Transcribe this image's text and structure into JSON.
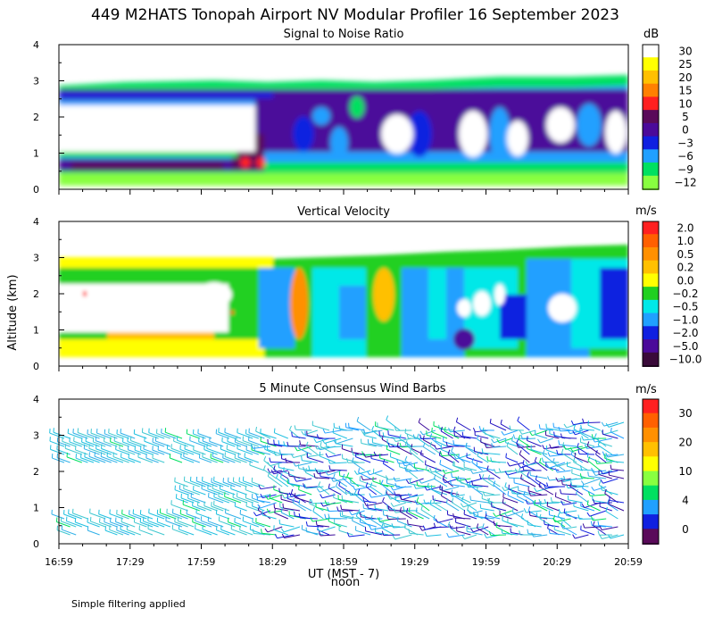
{
  "title": "449 M2HATS Tonopah Airport NV Modular Profiler 16 September 2023",
  "ylabel": "Altitude (km)",
  "xlabel": "UT  (MST - 7)",
  "noon_label": "noon",
  "footnote": "Simple filtering applied",
  "x_ticks": [
    "16:59",
    "17:29",
    "17:59",
    "18:29",
    "18:59",
    "19:29",
    "19:59",
    "20:29",
    "20:59"
  ],
  "y_ticks": [
    "0",
    "1",
    "2",
    "3",
    "4"
  ],
  "chart_data": [
    {
      "type": "heatmap",
      "title": "Signal to Noise Ratio",
      "unit": "dB",
      "ylim": [
        0,
        4
      ],
      "colorbar": {
        "ticks": [
          "30",
          "25",
          "20",
          "15",
          "10",
          "5",
          "0",
          "−3",
          "−6",
          "−9",
          "−12"
        ],
        "colors": [
          "#ffffff",
          "#ffff00",
          "#ffc000",
          "#ff8000",
          "#ff2020",
          "#5a0a5a",
          "#4b0a9a",
          "#1020e0",
          "#20a0ff",
          "#00e060",
          "#88ff40"
        ]
      }
    },
    {
      "type": "heatmap",
      "title": "Vertical Velocity",
      "unit": "m/s",
      "ylim": [
        0,
        4
      ],
      "colorbar": {
        "ticks": [
          "2.0",
          "1.0",
          "0.5",
          "0.2",
          "0.0",
          "−0.2",
          "−0.5",
          "−1.0",
          "−2.0",
          "−5.0",
          "−10.0"
        ],
        "colors": [
          "#ff2020",
          "#ff6000",
          "#ff9000",
          "#ffc000",
          "#ffff00",
          "#20d020",
          "#00e8e8",
          "#20a0ff",
          "#1020e0",
          "#4b0a9a",
          "#3a0a3a"
        ]
      }
    },
    {
      "type": "scatter",
      "title": "5 Minute Consensus Wind Barbs",
      "unit": "m/s",
      "ylim": [
        0,
        4
      ],
      "colorbar": {
        "ticks": [
          "30",
          "20",
          "10",
          "4",
          "0"
        ],
        "colors": [
          "#ff2020",
          "#ff6000",
          "#ff9000",
          "#ffc000",
          "#ffff00",
          "#88ff40",
          "#00e060",
          "#20a0ff",
          "#1020e0",
          "#5a0a5a"
        ]
      }
    }
  ]
}
